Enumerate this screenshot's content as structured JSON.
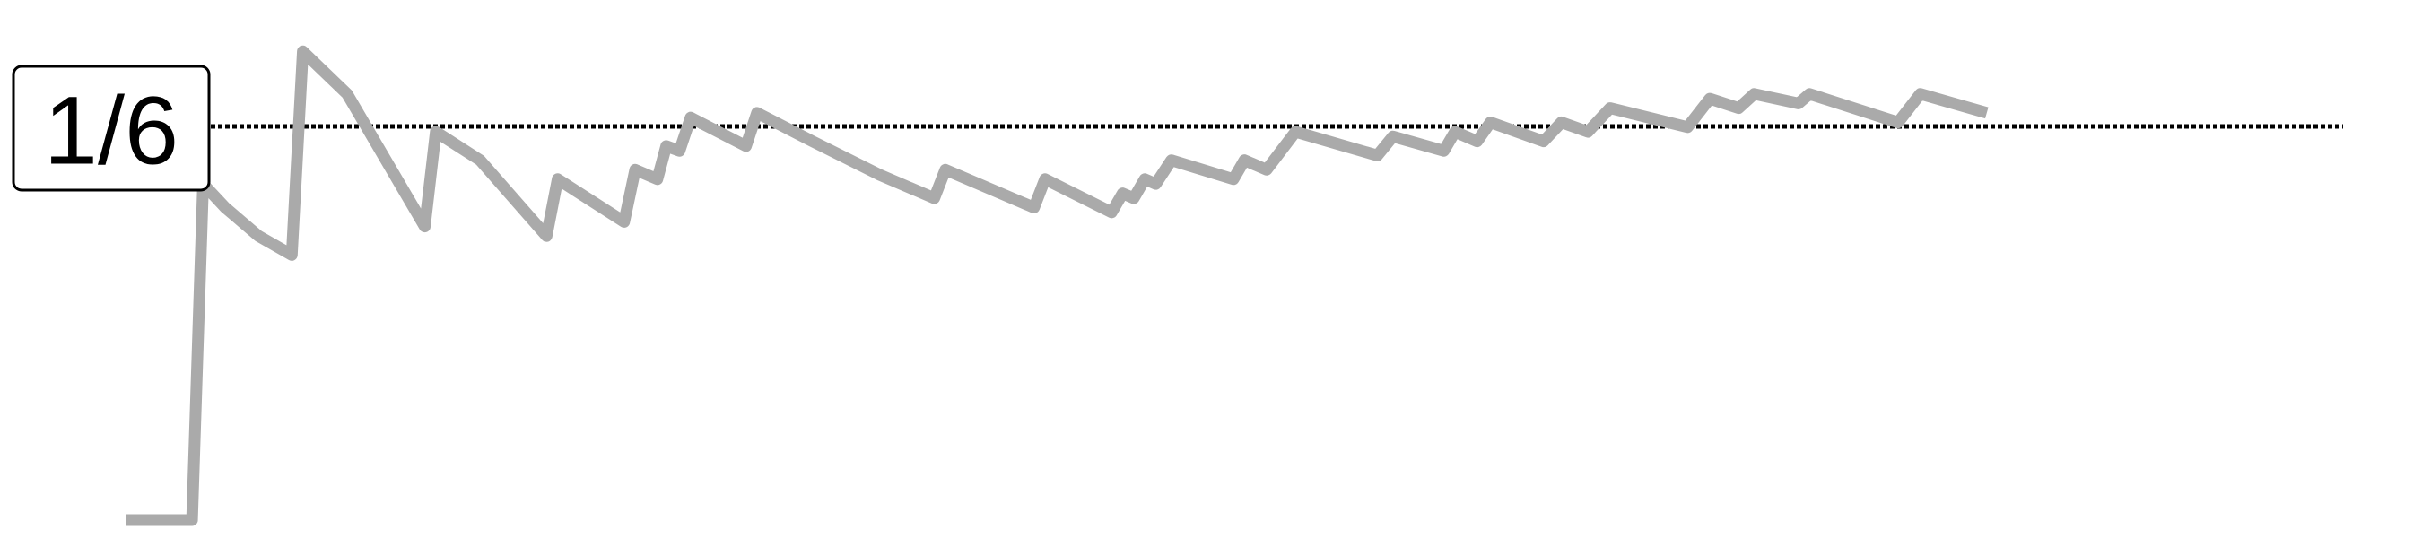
{
  "chart_data": {
    "type": "line",
    "title": "",
    "xlabel": "",
    "ylabel": "",
    "reference_line": {
      "value": 0.16667,
      "label": "1/6",
      "style": "dotted",
      "color": "#000000"
    },
    "series": [
      {
        "color": "#aaaaaa",
        "points": [
          [
            1,
            0.0
          ],
          [
            2,
            0.0
          ],
          [
            3,
            0.5
          ],
          [
            4,
            0.333
          ],
          [
            5,
            0.6
          ],
          [
            6,
            0.5
          ],
          [
            7,
            0.571
          ],
          [
            8,
            0.5
          ],
          [
            9,
            0.556
          ],
          [
            10,
            0.5
          ],
          [
            11,
            0.545
          ],
          [
            12,
            0.5
          ],
          [
            13,
            0.538
          ],
          [
            14,
            0.5
          ],
          [
            15,
            0.533
          ],
          [
            16,
            0.5
          ],
          [
            17,
            0.529
          ],
          [
            18,
            0.5
          ],
          [
            19,
            0.526
          ],
          [
            20,
            0.5
          ],
          [
            21,
            0.524
          ],
          [
            22,
            0.5
          ],
          [
            23,
            0.522
          ],
          [
            24,
            0.5
          ],
          [
            25,
            0.52
          ],
          [
            26,
            0.5
          ],
          [
            27,
            0.519
          ],
          [
            28,
            0.5
          ],
          [
            29,
            0.517
          ],
          [
            30,
            0.5
          ]
        ],
        "path": [
          [
            0.0,
            0.0
          ],
          [
            0.03,
            0.0
          ],
          [
            0.035,
            0.71
          ],
          [
            0.045,
            0.66
          ],
          [
            0.06,
            0.6
          ],
          [
            0.075,
            0.56
          ],
          [
            0.08,
            0.99
          ],
          [
            0.1,
            0.9
          ],
          [
            0.135,
            0.62
          ],
          [
            0.14,
            0.82
          ],
          [
            0.16,
            0.76
          ],
          [
            0.19,
            0.6
          ],
          [
            0.195,
            0.72
          ],
          [
            0.225,
            0.63
          ],
          [
            0.23,
            0.74
          ],
          [
            0.24,
            0.72
          ],
          [
            0.244,
            0.79
          ],
          [
            0.25,
            0.78
          ],
          [
            0.255,
            0.85
          ],
          [
            0.28,
            0.79
          ],
          [
            0.285,
            0.86
          ],
          [
            0.31,
            0.8
          ],
          [
            0.34,
            0.73
          ],
          [
            0.365,
            0.68
          ],
          [
            0.37,
            0.74
          ],
          [
            0.41,
            0.66
          ],
          [
            0.415,
            0.72
          ],
          [
            0.445,
            0.65
          ],
          [
            0.45,
            0.69
          ],
          [
            0.455,
            0.68
          ],
          [
            0.46,
            0.72
          ],
          [
            0.465,
            0.71
          ],
          [
            0.472,
            0.76
          ],
          [
            0.5,
            0.72
          ],
          [
            0.505,
            0.76
          ],
          [
            0.515,
            0.74
          ],
          [
            0.528,
            0.82
          ],
          [
            0.565,
            0.77
          ],
          [
            0.572,
            0.81
          ],
          [
            0.595,
            0.78
          ],
          [
            0.6,
            0.82
          ],
          [
            0.61,
            0.8
          ],
          [
            0.616,
            0.84
          ],
          [
            0.64,
            0.8
          ],
          [
            0.648,
            0.84
          ],
          [
            0.66,
            0.82
          ],
          [
            0.67,
            0.87
          ],
          [
            0.705,
            0.83
          ],
          [
            0.715,
            0.89
          ],
          [
            0.728,
            0.87
          ],
          [
            0.735,
            0.9
          ],
          [
            0.755,
            0.88
          ],
          [
            0.76,
            0.9
          ],
          [
            0.8,
            0.84
          ],
          [
            0.81,
            0.9
          ],
          [
            0.84,
            0.86
          ]
        ]
      }
    ]
  }
}
